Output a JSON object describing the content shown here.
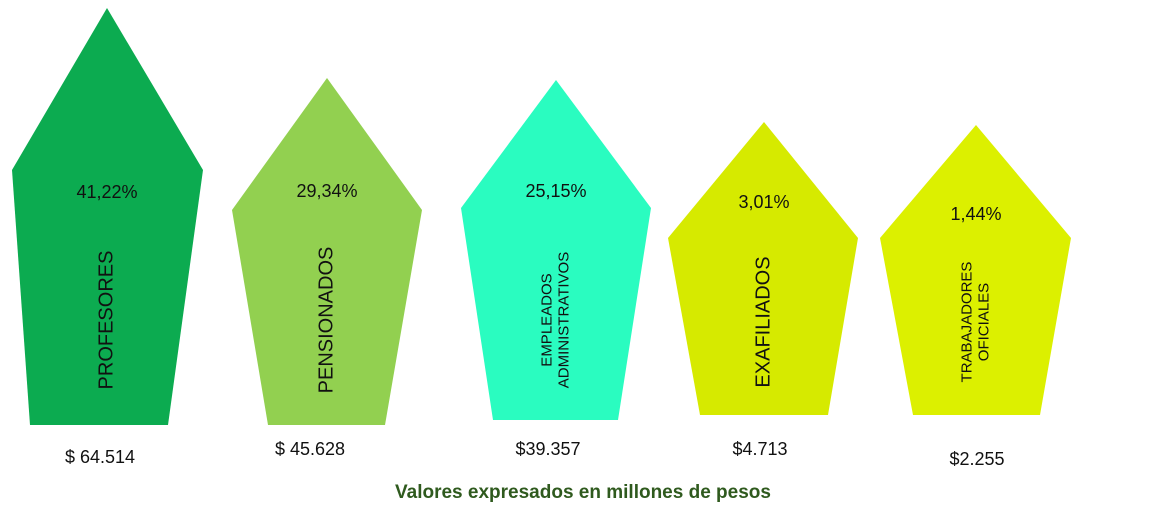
{
  "chart_data": {
    "type": "pentagon",
    "categories": [
      [
        "PROFESORES"
      ],
      [
        "PENSIONADOS"
      ],
      [
        "EMPLEADOS",
        "ADMINISTRATIVOS"
      ],
      [
        "EXAFILIADOS"
      ],
      [
        "TRABAJADORES",
        "OFICIALES"
      ]
    ],
    "values": [
      41.22,
      29.34,
      25.15,
      3.01,
      1.44
    ],
    "value_labels": [
      "41,22%",
      "29,34%",
      "25,15%",
      "3,01%",
      "1,44%"
    ],
    "amounts": [
      64514,
      45628,
      39357,
      4713,
      2255
    ],
    "amount_labels": [
      "$ 64.514",
      "$ 45.628",
      "$39.357",
      "$4.713",
      "$2.255"
    ],
    "colors": [
      "#0cab50",
      "#92d050",
      "#2afcc0",
      "#d6ea00",
      "#dcf000"
    ],
    "footnote": "Valores expresados en millones de pesos"
  }
}
